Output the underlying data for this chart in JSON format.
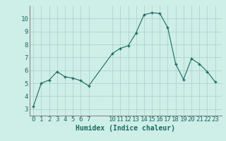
{
  "x": [
    0,
    1,
    2,
    3,
    4,
    5,
    6,
    7,
    10,
    11,
    12,
    13,
    14,
    15,
    16,
    17,
    18,
    19,
    20,
    21,
    22,
    23
  ],
  "y": [
    3.2,
    5.0,
    5.25,
    5.9,
    5.5,
    5.4,
    5.2,
    4.8,
    7.3,
    7.7,
    7.9,
    8.9,
    10.3,
    10.45,
    10.4,
    9.3,
    6.5,
    5.3,
    6.9,
    6.5,
    5.9,
    5.1
  ],
  "xlabel": "Humidex (Indice chaleur)",
  "xticks": [
    0,
    1,
    2,
    3,
    4,
    5,
    6,
    7,
    10,
    11,
    12,
    13,
    14,
    15,
    16,
    17,
    18,
    19,
    20,
    21,
    22,
    23
  ],
  "xlim": [
    -0.5,
    23.8
  ],
  "ylim": [
    2.5,
    11.0
  ],
  "yticks": [
    3,
    4,
    5,
    6,
    7,
    8,
    9,
    10
  ],
  "line_color": "#1a6b5e",
  "marker_color": "#1a6b5e",
  "bg_color": "#ceeee8",
  "grid_color": "#b0ccc8",
  "axis_bg": "#ceeee8",
  "tick_label_color": "#1a6b5e",
  "xlabel_color": "#1a6b5e",
  "xlabel_fontsize": 7,
  "tick_fontsize": 6.5
}
